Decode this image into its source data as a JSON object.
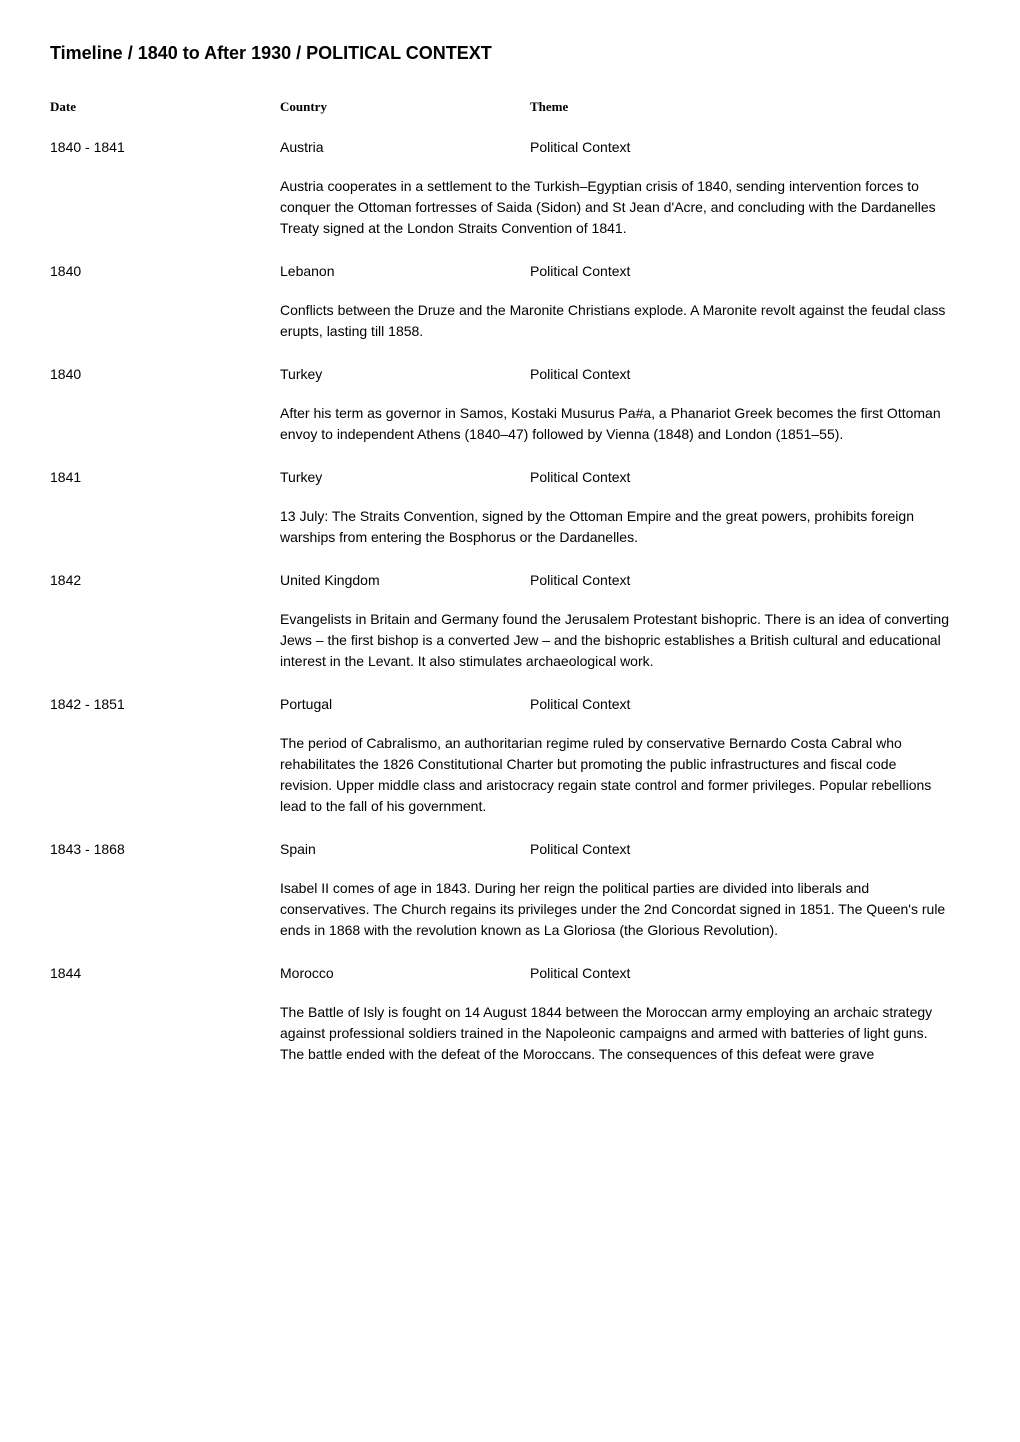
{
  "title": "Timeline / 1840 to After 1930 / POLITICAL CONTEXT",
  "headers": {
    "date": "Date",
    "country": "Country",
    "theme": "Theme"
  },
  "entries": [
    {
      "date": "1840 - 1841",
      "country": "Austria",
      "theme": "Political Context",
      "desc": "Austria cooperates in a settlement to the Turkish–Egyptian crisis of 1840, sending intervention forces to conquer the Ottoman fortresses of Saida (Sidon) and St Jean d'Acre, and concluding with the Dardanelles Treaty signed at the London Straits Convention of 1841."
    },
    {
      "date": "1840",
      "country": "Lebanon",
      "theme": "Political Context",
      "desc": "Conflicts between the Druze and the Maronite Christians explode. A Maronite revolt against the feudal class erupts, lasting till 1858."
    },
    {
      "date": "1840",
      "country": "Turkey",
      "theme": "Political Context",
      "desc": "After his term as governor in Samos, Kostaki Musurus Pa#a, a Phanariot Greek becomes the first Ottoman envoy to independent Athens (1840–47) followed by Vienna (1848) and London (1851–55)."
    },
    {
      "date": "1841",
      "country": "Turkey",
      "theme": "Political Context",
      "desc": "13 July: The Straits Convention, signed by the Ottoman Empire and the great powers, prohibits foreign warships from entering the Bosphorus or the Dardanelles."
    },
    {
      "date": "1842",
      "country": "United Kingdom",
      "theme": "Political Context",
      "desc": "Evangelists in Britain and Germany found the Jerusalem Protestant bishopric. There is an idea of converting Jews – the first bishop is a converted Jew – and the bishopric establishes a British cultural and educational interest in the Levant. It also stimulates archaeological work."
    },
    {
      "date": "1842 - 1851",
      "country": "Portugal",
      "theme": "Political Context",
      "desc": "The period of Cabralismo, an authoritarian regime ruled by conservative Bernardo Costa Cabral who rehabilitates the 1826 Constitutional Charter but promoting the public infrastructures and fiscal code revision. Upper middle class and aristocracy regain state control and former privileges. Popular rebellions lead to the fall of his government."
    },
    {
      "date": "1843 - 1868",
      "country": "Spain",
      "theme": "Political Context",
      "desc": "Isabel II comes of age in 1843. During her reign the political parties are divided into liberals and conservatives. The Church regains its privileges under the 2nd Concordat signed in 1851. The Queen's rule ends in 1868 with the revolution known as La Gloriosa (the Glorious Revolution)."
    },
    {
      "date": "1844",
      "country": "Morocco",
      "theme": "Political Context",
      "desc": "The Battle of Isly is fought on 14 August 1844 between the Moroccan army employing an archaic strategy against professional soldiers trained in the Napoleonic campaigns and armed with batteries of light guns. The battle ended with the defeat of the Moroccans. The consequences of this defeat were grave"
    }
  ]
}
